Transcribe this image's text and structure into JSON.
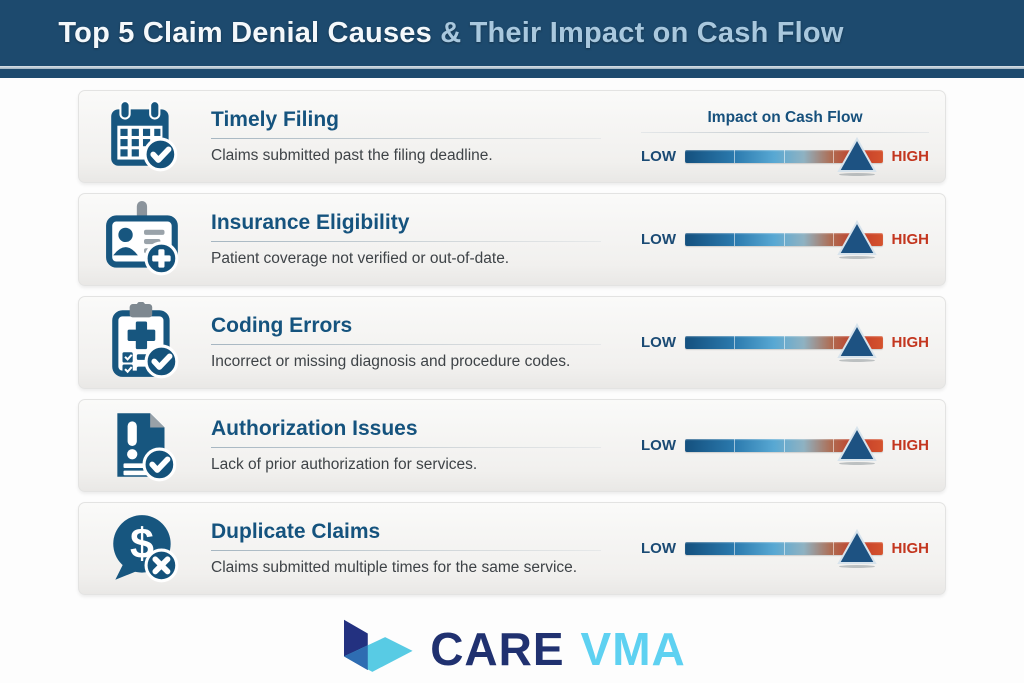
{
  "header": {
    "title_main": "Top 5 Claim Denial Causes",
    "title_sub": " & Their Impact on Cash Flow",
    "bg_color": "#1d4a6e",
    "title_main_color": "#f4f8fb",
    "title_sub_color": "#a9c8de"
  },
  "gauge": {
    "column_title": "Impact on Cash Flow",
    "low_label": "LOW",
    "high_label": "HIGH",
    "low_color": "#1a4a74",
    "high_color": "#c3361f",
    "bar_gradient": [
      "#14507e",
      "#2b7aae",
      "#58a8d3",
      "#8fb2c2",
      "#af6c52",
      "#c23b27",
      "#d5532e"
    ],
    "marker_color": "#1d5282",
    "tick_positions_pct": [
      25,
      50,
      75
    ]
  },
  "rows": [
    {
      "title": "Timely Filing",
      "description": "Claims submitted past the filing deadline.",
      "icon": "calendar-check-icon",
      "impact_level": "HIGH",
      "impact_pct": 87
    },
    {
      "title": "Insurance Eligibility",
      "description": "Patient coverage not verified or out-of-date.",
      "icon": "id-card-plus-icon",
      "impact_level": "HIGH",
      "impact_pct": 87
    },
    {
      "title": "Coding Errors",
      "description": "Incorrect or missing diagnosis and procedure codes.",
      "icon": "clipboard-check-icon",
      "impact_level": "HIGH",
      "impact_pct": 87
    },
    {
      "title": "Authorization Issues",
      "description": "Lack of prior authorization for services.",
      "icon": "document-alert-icon",
      "impact_level": "HIGH",
      "impact_pct": 87
    },
    {
      "title": "Duplicate Claims",
      "description": "Claims submitted multiple times for the same service.",
      "icon": "dollar-bubble-x-icon",
      "impact_level": "HIGH",
      "impact_pct": 87
    }
  ],
  "footer": {
    "brand_care": "CARE",
    "brand_vma": "VMA",
    "care_color": "#203170",
    "vma_color": "#5ed1f1"
  },
  "colors": {
    "icon_blue": "#17567f",
    "row_title_blue": "#15537e",
    "card_bg": "#f3f2f0",
    "page_bg": "#fdfdfd"
  }
}
